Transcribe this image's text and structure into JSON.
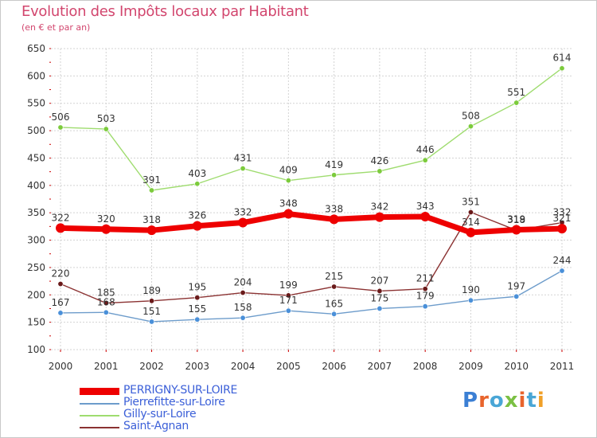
{
  "header": {
    "title": "Evolution des Impôts locaux par Habitant",
    "subtitle": "(en € et par an)"
  },
  "colors": {
    "frame": "#c8c8c8",
    "title": "#d2466e",
    "grid": "#d3d3d3",
    "axis_tick_red": "#cc0000",
    "axis_text": "#333333",
    "legend_text": "#3b5fd8"
  },
  "logo": {
    "text": "Proxiti",
    "letter_colors": [
      "#3b7fd4",
      "#e8642c",
      "#49a6d6",
      "#7bc043",
      "#e8642c",
      "#49a6d6",
      "#f0a028"
    ]
  },
  "chart_data": {
    "type": "line",
    "title": "Evolution des Impôts locaux par Habitant",
    "subtitle": "(en € et par an)",
    "xlabel": "",
    "ylabel": "",
    "x": [
      "2000",
      "2001",
      "2002",
      "2003",
      "2004",
      "2005",
      "2006",
      "2007",
      "2008",
      "2009",
      "2010",
      "2011"
    ],
    "ylim": [
      100,
      650
    ],
    "yticks": [
      100,
      150,
      200,
      250,
      300,
      350,
      400,
      450,
      500,
      550,
      600,
      650
    ],
    "grid": true,
    "legend_position": "bottom-left",
    "series": [
      {
        "name": "PERRIGNY-SUR-LOIRE",
        "color": "#ee0000",
        "marker_color": "#ee0000",
        "bold": true,
        "values": [
          322,
          320,
          318,
          326,
          332,
          348,
          338,
          342,
          343,
          314,
          319,
          321
        ],
        "labels": [
          "322",
          "320",
          "318",
          "326",
          "332",
          "348",
          "338",
          "342",
          "343",
          "314",
          "319",
          "321"
        ]
      },
      {
        "name": "Pierrefitte-sur-Loire",
        "color": "#6d9ccb",
        "marker_color": "#4a90d9",
        "bold": false,
        "values": [
          167,
          168,
          151,
          155,
          158,
          171,
          165,
          175,
          179,
          190,
          197,
          244
        ],
        "labels": [
          "167",
          "168",
          "151",
          "155",
          "158",
          "171",
          "165",
          "175",
          "179",
          "190",
          "197",
          "244"
        ]
      },
      {
        "name": "Gilly-sur-Loire",
        "color": "#9fdc6f",
        "marker_color": "#7ccb3c",
        "bold": false,
        "values": [
          506,
          503,
          391,
          403,
          431,
          409,
          419,
          426,
          446,
          508,
          551,
          614
        ],
        "labels": [
          "506",
          "503",
          "391",
          "403",
          "431",
          "409",
          "419",
          "426",
          "446",
          "508",
          "551",
          "614"
        ]
      },
      {
        "name": "Saint-Agnan",
        "color": "#8b3232",
        "marker_color": "#6a1a1a",
        "bold": false,
        "values": [
          220,
          185,
          189,
          195,
          204,
          199,
          215,
          207,
          211,
          351,
          318,
          332
        ],
        "labels": [
          "220",
          "185",
          "189",
          "195",
          "204",
          "199",
          "215",
          "207",
          "211",
          "351",
          "318",
          "332"
        ]
      }
    ]
  }
}
